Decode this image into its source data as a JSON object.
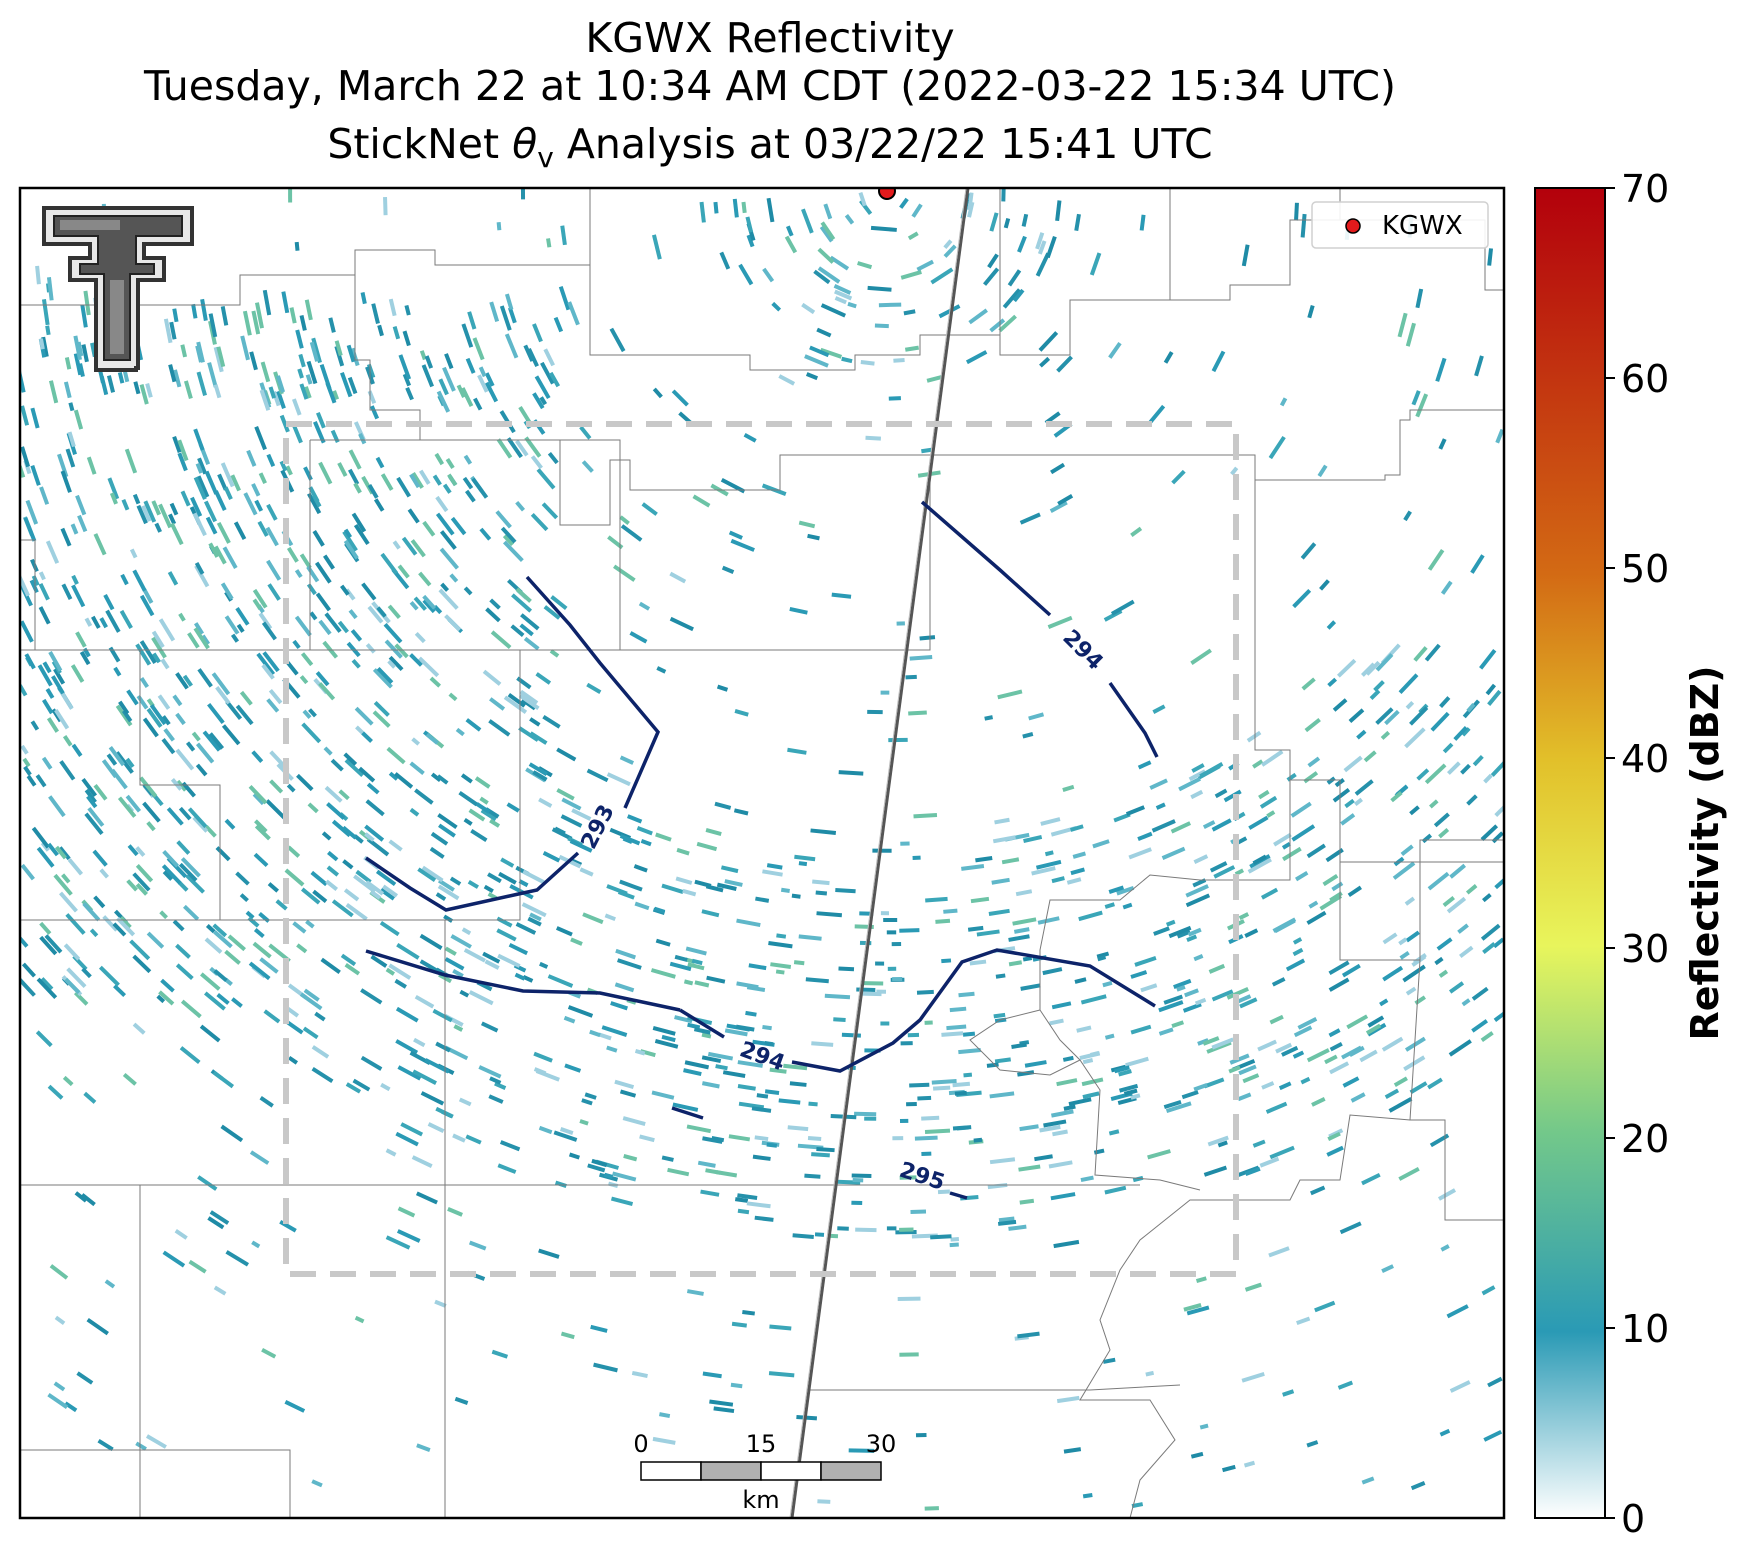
{
  "title": {
    "line1": "KGWX Reflectivity",
    "line2": "Tuesday, March 22 at 10:34 AM CDT (2022-03-22 15:34 UTC)",
    "line3_prefix": "StickNet ",
    "line3_theta": "θ",
    "line3_sub": "v",
    "line3_suffix": " Analysis at 03/22/22 15:41 UTC"
  },
  "legend": {
    "marker_label": "KGWX",
    "marker_color": "#e31a1c"
  },
  "colorbar": {
    "label": "Reflectivity (dBZ)",
    "range": [
      0,
      70
    ],
    "ticks": [
      "0",
      "10",
      "20",
      "30",
      "40",
      "50",
      "60",
      "70"
    ],
    "colors": [
      "#ffffff",
      "#2a9ab5",
      "#73c88a",
      "#e8f55c",
      "#e2c02a",
      "#d36a14",
      "#b3000c"
    ]
  },
  "scale_bar": {
    "tick_labels": [
      "0",
      "15",
      "30"
    ],
    "unit": "km"
  },
  "contours": [
    {
      "value": "293",
      "label": "293"
    },
    {
      "value": "294",
      "label": "294"
    },
    {
      "value": "294b",
      "label": "294"
    },
    {
      "value": "295",
      "label": "295"
    }
  ],
  "colors": {
    "contour": "#0d2369",
    "domain_box": "#c8c8c8",
    "boundaries": "#7a7a7a",
    "echo": "#2a9ab5"
  },
  "logo": {
    "name": "Texas Tech double-T logo"
  }
}
